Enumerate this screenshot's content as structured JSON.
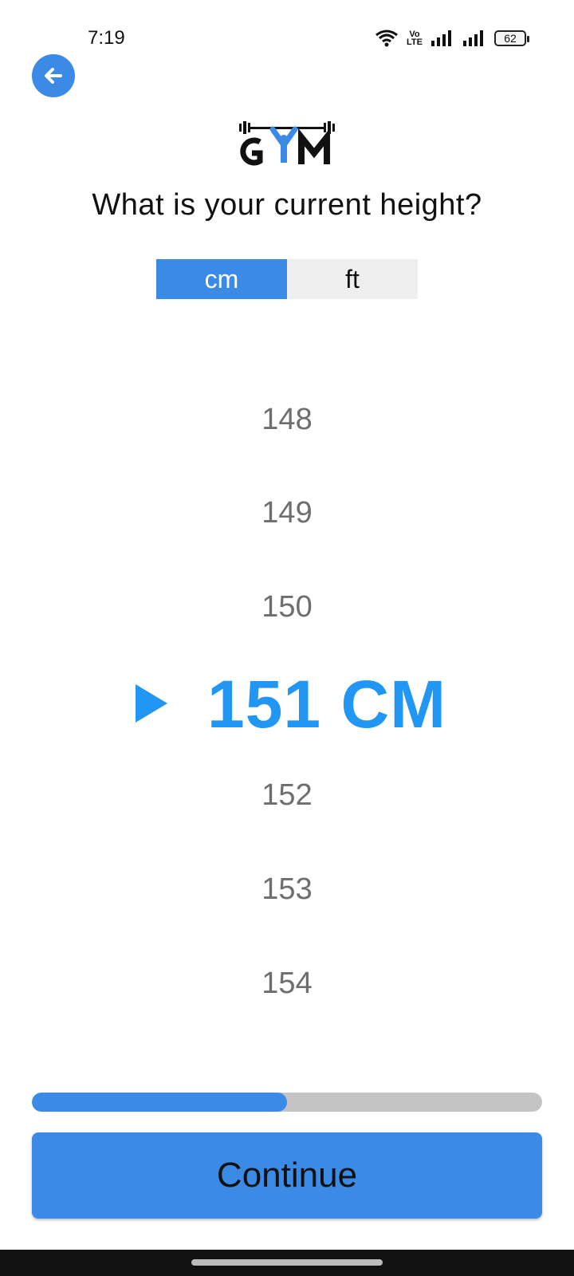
{
  "status_bar": {
    "time": "7:19",
    "volte_top": "Vo",
    "volte_bottom": "LTE",
    "battery": "62"
  },
  "header": {
    "logo_text": "GYM",
    "question": "What is your current height?"
  },
  "units": {
    "options": [
      "cm",
      "ft"
    ],
    "selected": "cm"
  },
  "picker": {
    "items_above": [
      "148",
      "149",
      "150"
    ],
    "selected_value": "151 CM",
    "items_below": [
      "152",
      "153",
      "154"
    ]
  },
  "progress": {
    "fraction": 0.5
  },
  "actions": {
    "continue_label": "Continue"
  },
  "colors": {
    "accent": "#3a8ae6",
    "selected_value": "#2196f3",
    "track": "#c4c4c4"
  },
  "icons": {
    "back": "arrow-left-icon",
    "wifi": "wifi-icon",
    "signal": "signal-icon",
    "battery": "battery-icon",
    "selection": "triangle-right-icon"
  }
}
